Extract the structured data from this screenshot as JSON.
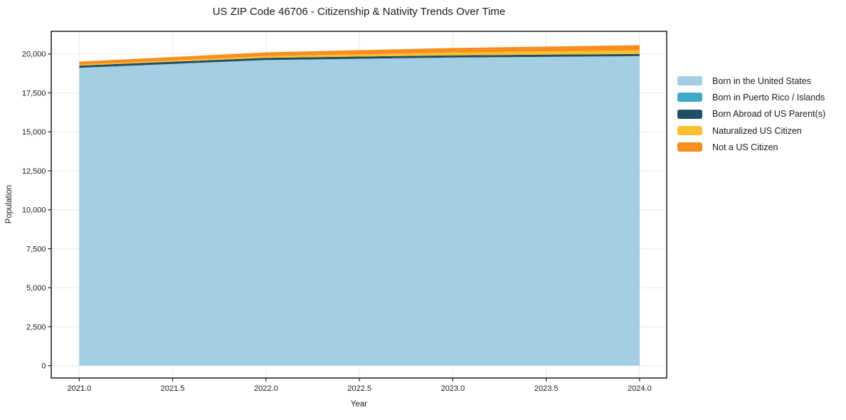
{
  "figure": {
    "background": "#ffffff"
  },
  "chart_data": {
    "type": "area",
    "stacked": true,
    "title": "US ZIP Code 46706 - Citizenship & Nativity Trends Over Time",
    "xlabel": "Year",
    "ylabel": "Population",
    "x": [
      2021,
      2022,
      2023,
      2024
    ],
    "series": [
      {
        "name": "Born in the United States",
        "color": "#a3cee4",
        "values": [
          19100,
          19600,
          19760,
          19850
        ]
      },
      {
        "name": "Born in Puerto Rico / Islands",
        "color": "#3fa9c5",
        "values": [
          10,
          10,
          10,
          10
        ]
      },
      {
        "name": "Born Abroad of US Parent(s)",
        "color": "#204e63",
        "values": [
          140,
          140,
          140,
          140
        ]
      },
      {
        "name": "Naturalized US Citizen",
        "color": "#fbbe2e",
        "values": [
          60,
          110,
          180,
          230
        ]
      },
      {
        "name": "Not a US Citizen",
        "color": "#f78e1e",
        "values": [
          200,
          240,
          290,
          330
        ]
      }
    ],
    "xlim": [
      2020.85,
      2024.145
    ],
    "ylim": [
      -790,
      21450
    ],
    "x_ticks": [
      2021.0,
      2021.5,
      2022.0,
      2022.5,
      2023.0,
      2023.5,
      2024.0
    ],
    "y_ticks": [
      0,
      2500,
      5000,
      7500,
      10000,
      12500,
      15000,
      17500,
      20000
    ],
    "grid": true,
    "grid_color": "#e9e9ec",
    "spine_color": "#1a1a1a",
    "legend_position": "right"
  }
}
